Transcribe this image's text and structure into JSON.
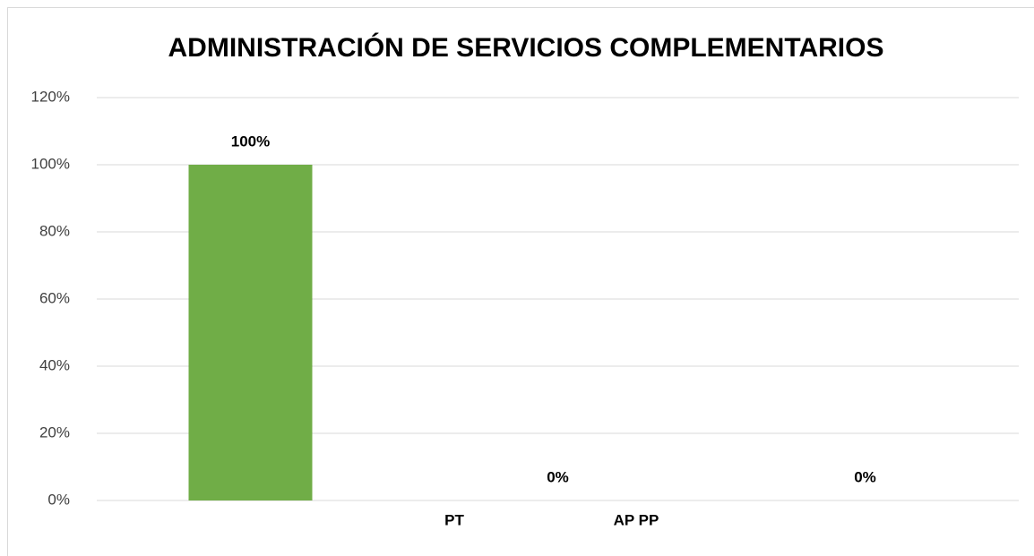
{
  "chart_data": {
    "type": "bar",
    "title": "ADMINISTRACIÓN DE SERVICIOS COMPLEMENTARIOS",
    "categories": [
      null,
      null,
      null
    ],
    "values": [
      100,
      0,
      0
    ],
    "value_labels": [
      "100%",
      "0%",
      "0%"
    ],
    "color": "#70ad47",
    "ylim": [
      0,
      120
    ],
    "yticks": [
      {
        "value": 0,
        "label": "0%"
      },
      {
        "value": 20,
        "label": "20%"
      },
      {
        "value": 40,
        "label": "40%"
      },
      {
        "value": 60,
        "label": "60%"
      },
      {
        "value": 80,
        "label": "80%"
      },
      {
        "value": 100,
        "label": "100%"
      },
      {
        "value": 120,
        "label": "120%"
      }
    ],
    "grid": true,
    "annotations": [
      {
        "text": "PT"
      },
      {
        "text": "AP PP"
      }
    ]
  }
}
